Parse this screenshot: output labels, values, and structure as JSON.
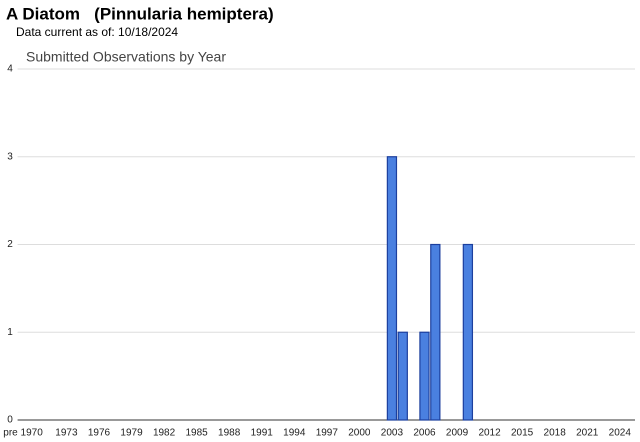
{
  "chart_data": {
    "type": "bar",
    "page_title": "A Diatom   (Pinnularia hemiptera)",
    "date_note": "Data current as of: 10/18/2024",
    "title": "Submitted Observations by Year",
    "categories": [
      "pre 1970",
      null,
      null,
      null,
      "1973",
      null,
      null,
      "1976",
      null,
      null,
      "1979",
      null,
      null,
      "1982",
      null,
      null,
      "1985",
      null,
      null,
      "1988",
      null,
      null,
      "1991",
      null,
      null,
      "1994",
      null,
      null,
      "1997",
      null,
      null,
      "2000",
      null,
      null,
      "2003",
      null,
      null,
      "2006",
      null,
      null,
      "2009",
      null,
      null,
      "2012",
      null,
      null,
      "2015",
      null,
      null,
      "2018",
      null,
      null,
      "2021",
      null,
      null,
      "2024"
    ],
    "values": [
      0,
      0,
      0,
      0,
      0,
      0,
      0,
      0,
      0,
      0,
      0,
      0,
      0,
      0,
      0,
      0,
      0,
      0,
      0,
      0,
      0,
      0,
      0,
      0,
      0,
      0,
      0,
      0,
      0,
      0,
      0,
      0,
      0,
      0,
      3,
      1,
      0,
      1,
      2,
      0,
      0,
      2,
      0,
      0,
      0,
      0,
      0,
      0,
      0,
      0,
      0,
      0,
      0,
      0,
      0,
      0
    ],
    "color": "#4a80e0",
    "ylim": [
      0,
      4
    ],
    "yticks": [
      0,
      1,
      2,
      3,
      4
    ],
    "grid": true
  }
}
